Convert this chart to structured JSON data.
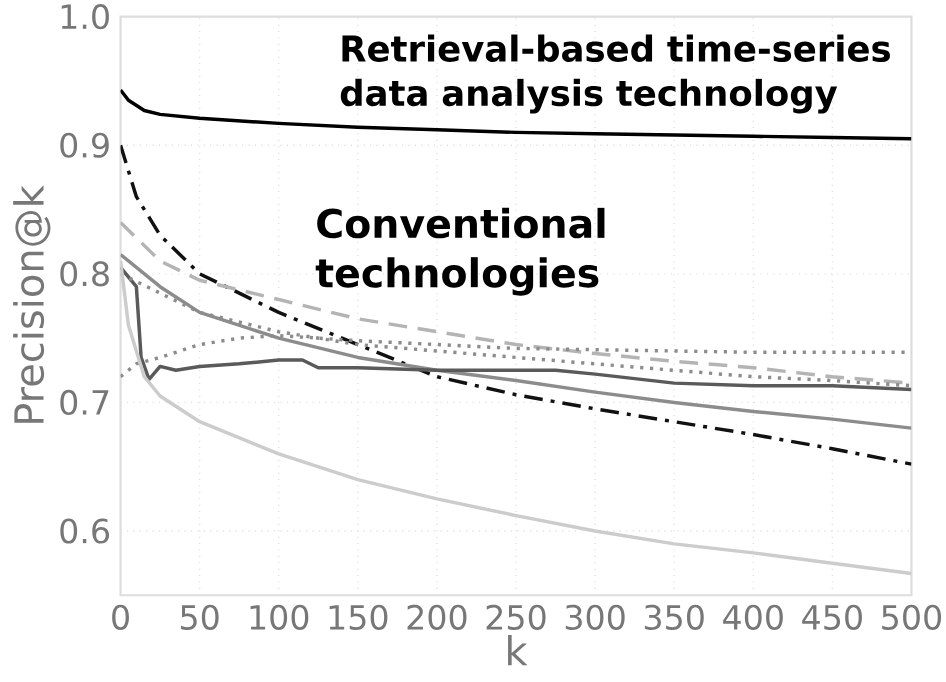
{
  "chart_data": {
    "type": "line",
    "xlabel": "k",
    "ylabel": "Precision@k",
    "annotations": [
      "Retrieval-based time-series\ndata analysis technology",
      "Conventional\ntechnologies"
    ],
    "xlim": [
      0,
      500
    ],
    "ylim": [
      0.55,
      1.0
    ],
    "xticks": [
      0,
      50,
      100,
      150,
      200,
      250,
      300,
      350,
      400,
      450,
      500
    ],
    "yticks": [
      0.6,
      0.7,
      0.8,
      0.9,
      {
        "value": 1,
        "label": "1.0"
      }
    ],
    "grid": true,
    "marker": "none",
    "series": [
      {
        "color": "#000000",
        "line_style": "solid",
        "x": [
          0,
          5,
          15,
          25,
          50,
          100,
          150,
          200,
          250,
          300,
          350,
          400,
          450,
          500
        ],
        "values": [
          0.943,
          0.935,
          0.927,
          0.924,
          0.921,
          0.917,
          0.914,
          0.912,
          0.91,
          0.909,
          0.908,
          0.907,
          0.906,
          0.905
        ]
      },
      {
        "color": "#111111",
        "line_style": "dashdot",
        "x": [
          0,
          10,
          25,
          50,
          100,
          150,
          200,
          250,
          300,
          350,
          400,
          450,
          500
        ],
        "values": [
          0.9,
          0.86,
          0.83,
          0.8,
          0.77,
          0.745,
          0.72,
          0.706,
          0.695,
          0.685,
          0.675,
          0.664,
          0.652
        ]
      },
      {
        "color": "#b4b4b4",
        "line_style": "dashed",
        "x": [
          0,
          25,
          50,
          100,
          150,
          200,
          250,
          300,
          350,
          400,
          450,
          500
        ],
        "values": [
          0.84,
          0.81,
          0.795,
          0.78,
          0.765,
          0.755,
          0.745,
          0.738,
          0.732,
          0.727,
          0.72,
          0.715
        ]
      },
      {
        "color": "#8c8c8c",
        "line_style": "solid",
        "x": [
          0,
          25,
          50,
          100,
          150,
          200,
          250,
          300,
          350,
          400,
          450,
          500
        ],
        "values": [
          0.815,
          0.79,
          0.77,
          0.75,
          0.735,
          0.725,
          0.717,
          0.708,
          0.7,
          0.693,
          0.687,
          0.68
        ]
      },
      {
        "color": "#5a5a5a",
        "line_style": "solid",
        "x": [
          0,
          10,
          13,
          18,
          25,
          35,
          50,
          75,
          100,
          115,
          125,
          150,
          175,
          200,
          250,
          275,
          300,
          350,
          400,
          450,
          500
        ],
        "values": [
          0.805,
          0.79,
          0.735,
          0.718,
          0.728,
          0.725,
          0.728,
          0.73,
          0.733,
          0.733,
          0.727,
          0.727,
          0.726,
          0.725,
          0.725,
          0.725,
          0.722,
          0.715,
          0.713,
          0.713,
          0.71
        ]
      },
      {
        "color": "#8c8c8c",
        "line_style": "dotted",
        "x": [
          0,
          10,
          25,
          50,
          75,
          100,
          150,
          200,
          250,
          300,
          350,
          400,
          450,
          500
        ],
        "values": [
          0.72,
          0.73,
          0.735,
          0.745,
          0.75,
          0.752,
          0.748,
          0.745,
          0.742,
          0.741,
          0.74,
          0.739,
          0.739,
          0.739
        ]
      },
      {
        "color": "#8c8c8c",
        "line_style": "dotted",
        "x": [
          0,
          25,
          50,
          100,
          150,
          200,
          250,
          300,
          350,
          400,
          450,
          500
        ],
        "values": [
          0.8,
          0.785,
          0.77,
          0.755,
          0.745,
          0.74,
          0.735,
          0.73,
          0.725,
          0.72,
          0.717,
          0.713
        ]
      },
      {
        "color": "#cccccc",
        "line_style": "solid",
        "x": [
          0,
          5,
          15,
          25,
          50,
          100,
          150,
          200,
          250,
          300,
          350,
          400,
          450,
          500
        ],
        "values": [
          0.81,
          0.76,
          0.72,
          0.705,
          0.685,
          0.66,
          0.64,
          0.625,
          0.612,
          0.6,
          0.59,
          0.583,
          0.575,
          0.567
        ]
      }
    ]
  }
}
